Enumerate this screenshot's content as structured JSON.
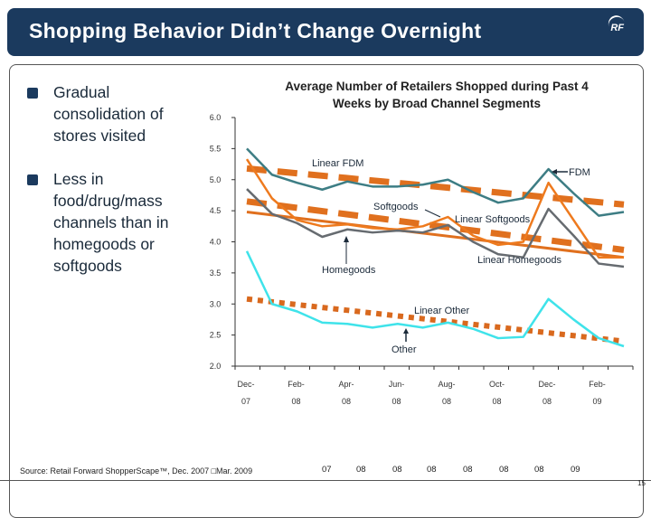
{
  "header": {
    "title": "Shopping Behavior Didn’t Change Overnight",
    "logo_text": "RF"
  },
  "bullets": [
    {
      "text": "Gradual consolidation of stores visited"
    },
    {
      "text": "Less in food/drug/mass channels than in homegoods or softgoods"
    }
  ],
  "chart_data": {
    "type": "line",
    "title": "Average Number of Retailers Shopped during Past 4 Weeks by Broad Channel Segments",
    "xlabel": "",
    "ylabel": "",
    "ylim": [
      2.0,
      6.0
    ],
    "y_ticks": [
      "2.0",
      "2.5",
      "3.0",
      "3.5",
      "4.0",
      "4.5",
      "5.0",
      "5.5",
      "6.0"
    ],
    "x": [
      "Dec-07",
      "Jan-08",
      "Feb-08",
      "Mar-08",
      "Apr-08",
      "May-08",
      "Jun-08",
      "Jul-08",
      "Aug-08",
      "Sep-08",
      "Oct-08",
      "Nov-08",
      "Dec-08",
      "Jan-09",
      "Feb-09",
      "Mar-09"
    ],
    "x_tick_labels": [
      [
        "Dec-",
        "07"
      ],
      [
        "Feb-",
        "08"
      ],
      [
        "Apr-",
        "08"
      ],
      [
        "Jun-",
        "08"
      ],
      [
        "Aug-",
        "08"
      ],
      [
        "Oct-",
        "08"
      ],
      [
        "Dec-",
        "08"
      ],
      [
        "Feb-",
        "09"
      ]
    ],
    "grid": false,
    "series": [
      {
        "name": "FDM",
        "color": "#3d7d84",
        "values": [
          5.5,
          5.08,
          4.95,
          4.84,
          4.97,
          4.89,
          4.89,
          4.92,
          5.0,
          4.8,
          4.63,
          4.7,
          5.17,
          4.78,
          4.42,
          4.48
        ]
      },
      {
        "name": "Softgoods",
        "color": "#ee7a1e",
        "values": [
          5.33,
          4.7,
          4.35,
          4.25,
          4.28,
          4.22,
          4.2,
          4.25,
          4.4,
          4.1,
          3.95,
          4.0,
          4.95,
          4.35,
          3.75,
          3.75
        ]
      },
      {
        "name": "Homegoods",
        "color": "#666b70",
        "values": [
          4.85,
          4.45,
          4.3,
          4.08,
          4.2,
          4.15,
          4.18,
          4.15,
          4.27,
          4.0,
          3.8,
          3.75,
          4.53,
          4.1,
          3.65,
          3.6
        ]
      },
      {
        "name": "Other",
        "color": "#3fe3ea",
        "values": [
          3.85,
          3.0,
          2.88,
          2.7,
          2.68,
          2.62,
          2.68,
          2.62,
          2.7,
          2.6,
          2.45,
          2.47,
          3.08,
          2.75,
          2.45,
          2.32
        ]
      }
    ],
    "trendlines": [
      {
        "name": "Linear FDM",
        "style": "dashed",
        "color": "#e0701e",
        "start": 5.18,
        "end": 4.6
      },
      {
        "name": "Linear Softgoods",
        "style": "dashed",
        "color": "#e0701e",
        "start": 4.65,
        "end": 3.87
      },
      {
        "name": "Linear Homegoods",
        "style": "solid",
        "color": "#e0701e",
        "start": 4.48,
        "end": 3.75
      },
      {
        "name": "Linear Other",
        "style": "dotted",
        "color": "#d9691e",
        "start": 3.08,
        "end": 2.4
      }
    ],
    "annotations": {
      "linear_fdm": "Linear FDM",
      "fdm": "FDM",
      "softgoods": "Softgoods",
      "linear_softgoods": "Linear Softgoods",
      "linear_homegoods": "Linear Homegoods",
      "homegoods": "Homegoods",
      "linear_other": "Linear Other",
      "other": "Other"
    }
  },
  "stray_labels": [
    "07",
    "08",
    "08",
    "08",
    "08",
    "08",
    "08",
    "09"
  ],
  "source": "Source: Retail Forward ShopperScape™, Dec. 2007 □Mar. 2009",
  "page_number": "15"
}
